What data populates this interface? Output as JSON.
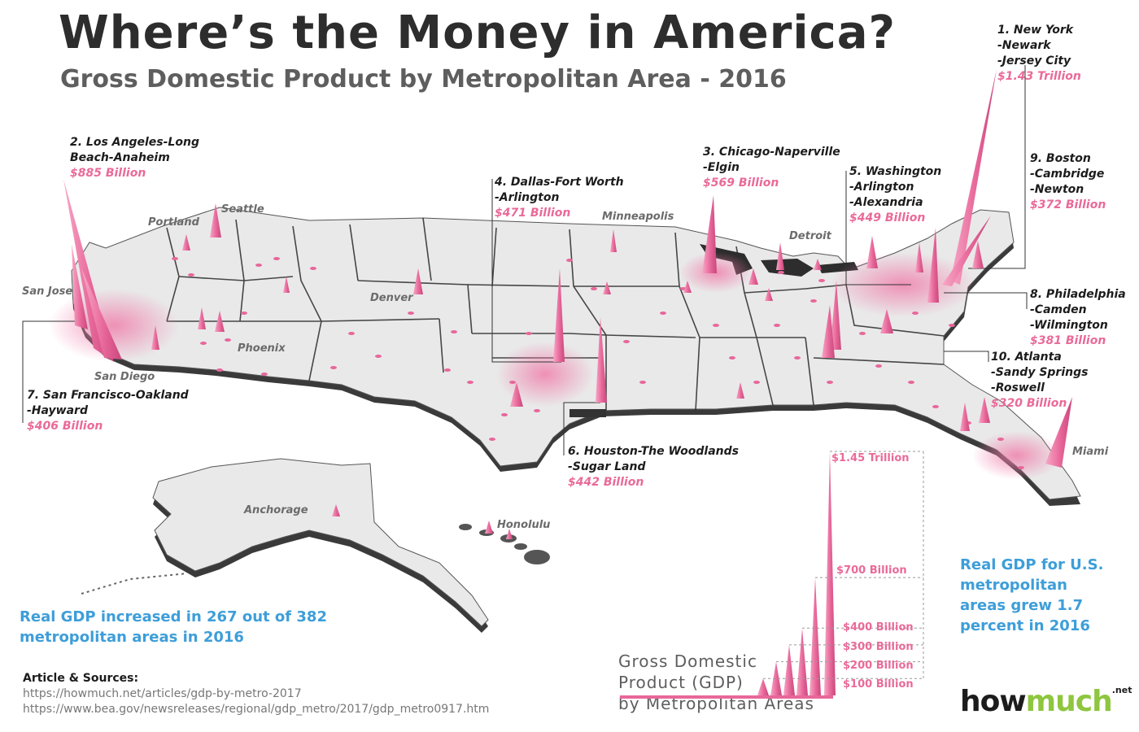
{
  "header": {
    "title": "Where’s the Money in America?",
    "subtitle": "Gross Domestic Product by Metropolitan Area - 2016"
  },
  "metros": [
    {
      "rank_name": "1. New York",
      "lines": [
        "-Newark",
        "-Jersey City"
      ],
      "gdp": "$1.43 Trillion"
    },
    {
      "rank_name": "2. Los Angeles-Long",
      "lines": [
        "Beach-Anaheim"
      ],
      "gdp": "$885 Billion"
    },
    {
      "rank_name": "3. Chicago-Naperville",
      "lines": [
        "-Elgin"
      ],
      "gdp": "$569 Billion"
    },
    {
      "rank_name": "4. Dallas-Fort Worth",
      "lines": [
        "-Arlington"
      ],
      "gdp": "$471 Billion"
    },
    {
      "rank_name": "5. Washington",
      "lines": [
        "-Arlington",
        "-Alexandria"
      ],
      "gdp": "$449 Billion"
    },
    {
      "rank_name": "6. Houston-The Woodlands",
      "lines": [
        "-Sugar Land"
      ],
      "gdp": "$442 Billion"
    },
    {
      "rank_name": "7. San Francisco-Oakland",
      "lines": [
        "-Hayward"
      ],
      "gdp": "$406 Billion"
    },
    {
      "rank_name": "8. Philadelphia",
      "lines": [
        "-Camden",
        "-Wilmington"
      ],
      "gdp": "$381 Billion"
    },
    {
      "rank_name": "9. Boston",
      "lines": [
        "-Cambridge",
        "-Newton"
      ],
      "gdp": "$372 Billion"
    },
    {
      "rank_name": "10. Atlanta",
      "lines": [
        "-Sandy Springs",
        "-Roswell"
      ],
      "gdp": "$320 Billion"
    }
  ],
  "cities": [
    "Seattle",
    "Portland",
    "San Jose",
    "San Diego",
    "Phoenix",
    "Denver",
    "Minneapolis",
    "Detroit",
    "Miami",
    "Anchorage",
    "Honolulu"
  ],
  "notes": {
    "increase": [
      "Real GDP increased in 267 out of 382",
      "metropolitan areas in 2016"
    ],
    "growth": [
      "Real GDP for U.S.",
      "metropolitan",
      "areas grew 1.7",
      "percent in 2016"
    ]
  },
  "sources": {
    "heading": "Article & Sources:",
    "links": [
      "https://howmuch.net/articles/gdp-by-metro-2017",
      "https://www.bea.gov/newsreleases/regional/gdp_metro/2017/gdp_metro0917.htm"
    ]
  },
  "legend": {
    "title_lines": [
      "Gross Domestic",
      "Product (GDP)",
      "by Metropolitan Areas"
    ],
    "scale": [
      "$1.45 Trillion",
      "$700 Billion",
      "$400 Billion",
      "$300 Billion",
      "$200 Billion",
      "$100 Billion"
    ],
    "scale_values_billion": [
      1450,
      700,
      400,
      300,
      200,
      100
    ]
  },
  "logo": {
    "how": "how",
    "much": "much",
    "net": ".net"
  },
  "colors": {
    "spike": "#e8679a",
    "value_text": "#ea6a98",
    "note_blue": "#3d9ed9",
    "logo_green": "#8ec63f"
  }
}
